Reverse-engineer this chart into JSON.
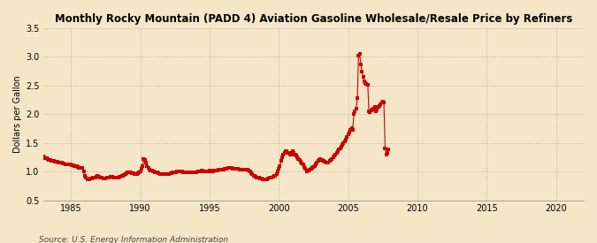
{
  "title": "Monthly Rocky Mountain (PADD 4) Aviation Gasoline Wholesale/Resale Price by Refiners",
  "ylabel": "Dollars per Gallon",
  "source": "Source: U.S. Energy Information Administration",
  "background_color": "#f5e6c8",
  "line_color": "#cc0000",
  "xlim": [
    1983.0,
    2022.0
  ],
  "ylim": [
    0.5,
    3.5
  ],
  "yticks": [
    0.5,
    1.0,
    1.5,
    2.0,
    2.5,
    3.0,
    3.5
  ],
  "xticks": [
    1985,
    1990,
    1995,
    2000,
    2005,
    2010,
    2015,
    2020
  ],
  "data": [
    [
      1983.0,
      1.27
    ],
    [
      1983.08,
      1.25
    ],
    [
      1983.17,
      1.24
    ],
    [
      1983.25,
      1.23
    ],
    [
      1983.33,
      1.22
    ],
    [
      1983.42,
      1.21
    ],
    [
      1983.5,
      1.2
    ],
    [
      1983.58,
      1.19
    ],
    [
      1983.67,
      1.19
    ],
    [
      1983.75,
      1.18
    ],
    [
      1983.83,
      1.17
    ],
    [
      1983.92,
      1.17
    ],
    [
      1984.0,
      1.17
    ],
    [
      1984.08,
      1.16
    ],
    [
      1984.17,
      1.16
    ],
    [
      1984.25,
      1.15
    ],
    [
      1984.33,
      1.15
    ],
    [
      1984.42,
      1.14
    ],
    [
      1984.5,
      1.14
    ],
    [
      1984.58,
      1.13
    ],
    [
      1984.67,
      1.13
    ],
    [
      1984.75,
      1.13
    ],
    [
      1984.83,
      1.12
    ],
    [
      1984.92,
      1.12
    ],
    [
      1985.0,
      1.12
    ],
    [
      1985.08,
      1.11
    ],
    [
      1985.17,
      1.11
    ],
    [
      1985.25,
      1.1
    ],
    [
      1985.33,
      1.1
    ],
    [
      1985.42,
      1.09
    ],
    [
      1985.5,
      1.08
    ],
    [
      1985.58,
      1.07
    ],
    [
      1985.67,
      1.07
    ],
    [
      1985.75,
      1.07
    ],
    [
      1985.83,
      1.06
    ],
    [
      1985.92,
      1.0
    ],
    [
      1986.0,
      0.93
    ],
    [
      1986.08,
      0.89
    ],
    [
      1986.17,
      0.87
    ],
    [
      1986.25,
      0.87
    ],
    [
      1986.33,
      0.87
    ],
    [
      1986.42,
      0.88
    ],
    [
      1986.5,
      0.88
    ],
    [
      1986.58,
      0.89
    ],
    [
      1986.67,
      0.9
    ],
    [
      1986.75,
      0.9
    ],
    [
      1986.83,
      0.91
    ],
    [
      1986.92,
      0.92
    ],
    [
      1987.0,
      0.91
    ],
    [
      1987.08,
      0.9
    ],
    [
      1987.17,
      0.89
    ],
    [
      1987.25,
      0.89
    ],
    [
      1987.33,
      0.88
    ],
    [
      1987.42,
      0.88
    ],
    [
      1987.5,
      0.88
    ],
    [
      1987.58,
      0.89
    ],
    [
      1987.67,
      0.9
    ],
    [
      1987.75,
      0.9
    ],
    [
      1987.83,
      0.91
    ],
    [
      1987.92,
      0.91
    ],
    [
      1988.0,
      0.91
    ],
    [
      1988.08,
      0.9
    ],
    [
      1988.17,
      0.9
    ],
    [
      1988.25,
      0.9
    ],
    [
      1988.33,
      0.9
    ],
    [
      1988.42,
      0.9
    ],
    [
      1988.5,
      0.91
    ],
    [
      1988.58,
      0.91
    ],
    [
      1988.67,
      0.92
    ],
    [
      1988.75,
      0.93
    ],
    [
      1988.83,
      0.94
    ],
    [
      1988.92,
      0.95
    ],
    [
      1989.0,
      0.97
    ],
    [
      1989.08,
      0.98
    ],
    [
      1989.17,
      0.99
    ],
    [
      1989.25,
      0.99
    ],
    [
      1989.33,
      0.98
    ],
    [
      1989.42,
      0.97
    ],
    [
      1989.5,
      0.97
    ],
    [
      1989.58,
      0.96
    ],
    [
      1989.67,
      0.96
    ],
    [
      1989.75,
      0.96
    ],
    [
      1989.83,
      0.97
    ],
    [
      1989.92,
      0.98
    ],
    [
      1990.0,
      1.0
    ],
    [
      1990.08,
      1.05
    ],
    [
      1990.17,
      1.1
    ],
    [
      1990.25,
      1.22
    ],
    [
      1990.33,
      1.2
    ],
    [
      1990.42,
      1.15
    ],
    [
      1990.5,
      1.1
    ],
    [
      1990.58,
      1.07
    ],
    [
      1990.67,
      1.04
    ],
    [
      1990.75,
      1.02
    ],
    [
      1990.83,
      1.01
    ],
    [
      1990.92,
      1.0
    ],
    [
      1991.0,
      1.0
    ],
    [
      1991.08,
      0.99
    ],
    [
      1991.17,
      0.98
    ],
    [
      1991.25,
      0.98
    ],
    [
      1991.33,
      0.97
    ],
    [
      1991.42,
      0.96
    ],
    [
      1991.5,
      0.96
    ],
    [
      1991.58,
      0.96
    ],
    [
      1991.67,
      0.96
    ],
    [
      1991.75,
      0.95
    ],
    [
      1991.83,
      0.95
    ],
    [
      1991.92,
      0.95
    ],
    [
      1992.0,
      0.96
    ],
    [
      1992.08,
      0.96
    ],
    [
      1992.17,
      0.97
    ],
    [
      1992.25,
      0.97
    ],
    [
      1992.33,
      0.98
    ],
    [
      1992.42,
      0.98
    ],
    [
      1992.5,
      0.99
    ],
    [
      1992.58,
      0.99
    ],
    [
      1992.67,
      1.0
    ],
    [
      1992.75,
      1.0
    ],
    [
      1992.83,
      1.0
    ],
    [
      1992.92,
      1.0
    ],
    [
      1993.0,
      1.0
    ],
    [
      1993.08,
      0.99
    ],
    [
      1993.17,
      0.99
    ],
    [
      1993.25,
      0.99
    ],
    [
      1993.33,
      0.98
    ],
    [
      1993.42,
      0.98
    ],
    [
      1993.5,
      0.98
    ],
    [
      1993.58,
      0.99
    ],
    [
      1993.67,
      0.99
    ],
    [
      1993.75,
      0.99
    ],
    [
      1993.83,
      0.99
    ],
    [
      1993.92,
      0.99
    ],
    [
      1994.0,
      0.99
    ],
    [
      1994.08,
      0.99
    ],
    [
      1994.17,
      1.0
    ],
    [
      1994.25,
      1.0
    ],
    [
      1994.33,
      1.0
    ],
    [
      1994.42,
      1.01
    ],
    [
      1994.5,
      1.01
    ],
    [
      1994.58,
      1.0
    ],
    [
      1994.67,
      1.0
    ],
    [
      1994.75,
      1.0
    ],
    [
      1994.83,
      1.0
    ],
    [
      1994.92,
      1.0
    ],
    [
      1995.0,
      1.01
    ],
    [
      1995.08,
      1.0
    ],
    [
      1995.17,
      1.01
    ],
    [
      1995.25,
      1.0
    ],
    [
      1995.33,
      1.01
    ],
    [
      1995.42,
      1.01
    ],
    [
      1995.5,
      1.02
    ],
    [
      1995.58,
      1.02
    ],
    [
      1995.67,
      1.03
    ],
    [
      1995.75,
      1.03
    ],
    [
      1995.83,
      1.03
    ],
    [
      1995.92,
      1.03
    ],
    [
      1996.0,
      1.04
    ],
    [
      1996.08,
      1.05
    ],
    [
      1996.17,
      1.05
    ],
    [
      1996.25,
      1.05
    ],
    [
      1996.33,
      1.06
    ],
    [
      1996.42,
      1.06
    ],
    [
      1996.5,
      1.06
    ],
    [
      1996.58,
      1.06
    ],
    [
      1996.67,
      1.05
    ],
    [
      1996.75,
      1.05
    ],
    [
      1996.83,
      1.05
    ],
    [
      1996.92,
      1.05
    ],
    [
      1997.0,
      1.05
    ],
    [
      1997.08,
      1.05
    ],
    [
      1997.17,
      1.04
    ],
    [
      1997.25,
      1.04
    ],
    [
      1997.33,
      1.04
    ],
    [
      1997.42,
      1.04
    ],
    [
      1997.5,
      1.04
    ],
    [
      1997.58,
      1.04
    ],
    [
      1997.67,
      1.04
    ],
    [
      1997.75,
      1.04
    ],
    [
      1997.83,
      1.02
    ],
    [
      1997.92,
      1.0
    ],
    [
      1998.0,
      0.97
    ],
    [
      1998.08,
      0.95
    ],
    [
      1998.17,
      0.93
    ],
    [
      1998.25,
      0.92
    ],
    [
      1998.33,
      0.91
    ],
    [
      1998.42,
      0.9
    ],
    [
      1998.5,
      0.9
    ],
    [
      1998.58,
      0.89
    ],
    [
      1998.67,
      0.88
    ],
    [
      1998.75,
      0.88
    ],
    [
      1998.83,
      0.87
    ],
    [
      1998.92,
      0.87
    ],
    [
      1999.0,
      0.87
    ],
    [
      1999.08,
      0.87
    ],
    [
      1999.17,
      0.87
    ],
    [
      1999.25,
      0.88
    ],
    [
      1999.33,
      0.89
    ],
    [
      1999.42,
      0.9
    ],
    [
      1999.5,
      0.9
    ],
    [
      1999.58,
      0.91
    ],
    [
      1999.67,
      0.92
    ],
    [
      1999.75,
      0.93
    ],
    [
      1999.83,
      0.96
    ],
    [
      1999.92,
      1.0
    ],
    [
      2000.0,
      1.05
    ],
    [
      2000.08,
      1.1
    ],
    [
      2000.17,
      1.18
    ],
    [
      2000.25,
      1.25
    ],
    [
      2000.33,
      1.3
    ],
    [
      2000.42,
      1.33
    ],
    [
      2000.5,
      1.35
    ],
    [
      2000.58,
      1.35
    ],
    [
      2000.67,
      1.33
    ],
    [
      2000.75,
      1.32
    ],
    [
      2000.83,
      1.3
    ],
    [
      2000.92,
      1.3
    ],
    [
      2001.0,
      1.35
    ],
    [
      2001.08,
      1.32
    ],
    [
      2001.17,
      1.3
    ],
    [
      2001.25,
      1.28
    ],
    [
      2001.33,
      1.25
    ],
    [
      2001.42,
      1.22
    ],
    [
      2001.5,
      1.2
    ],
    [
      2001.58,
      1.17
    ],
    [
      2001.67,
      1.14
    ],
    [
      2001.75,
      1.12
    ],
    [
      2001.83,
      1.08
    ],
    [
      2001.92,
      1.05
    ],
    [
      2002.0,
      1.0
    ],
    [
      2002.08,
      1.01
    ],
    [
      2002.17,
      1.02
    ],
    [
      2002.25,
      1.03
    ],
    [
      2002.33,
      1.05
    ],
    [
      2002.42,
      1.07
    ],
    [
      2002.5,
      1.08
    ],
    [
      2002.58,
      1.1
    ],
    [
      2002.67,
      1.12
    ],
    [
      2002.75,
      1.15
    ],
    [
      2002.83,
      1.18
    ],
    [
      2002.92,
      1.2
    ],
    [
      2003.0,
      1.22
    ],
    [
      2003.08,
      1.2
    ],
    [
      2003.17,
      1.19
    ],
    [
      2003.25,
      1.18
    ],
    [
      2003.33,
      1.17
    ],
    [
      2003.42,
      1.16
    ],
    [
      2003.5,
      1.15
    ],
    [
      2003.58,
      1.16
    ],
    [
      2003.67,
      1.18
    ],
    [
      2003.75,
      1.2
    ],
    [
      2003.83,
      1.22
    ],
    [
      2003.92,
      1.25
    ],
    [
      2004.0,
      1.28
    ],
    [
      2004.08,
      1.3
    ],
    [
      2004.17,
      1.33
    ],
    [
      2004.25,
      1.35
    ],
    [
      2004.33,
      1.38
    ],
    [
      2004.42,
      1.4
    ],
    [
      2004.5,
      1.43
    ],
    [
      2004.58,
      1.46
    ],
    [
      2004.67,
      1.5
    ],
    [
      2004.75,
      1.53
    ],
    [
      2004.83,
      1.56
    ],
    [
      2004.92,
      1.6
    ],
    [
      2005.0,
      1.65
    ],
    [
      2005.08,
      1.68
    ],
    [
      2005.17,
      1.72
    ],
    [
      2005.25,
      1.75
    ],
    [
      2005.33,
      1.73
    ],
    [
      2005.42,
      2.0
    ],
    [
      2005.5,
      2.05
    ],
    [
      2005.58,
      2.1
    ],
    [
      2005.67,
      2.28
    ],
    [
      2005.75,
      3.02
    ],
    [
      2005.83,
      3.05
    ],
    [
      2005.92,
      2.87
    ],
    [
      2006.0,
      2.75
    ],
    [
      2006.08,
      2.65
    ],
    [
      2006.17,
      2.57
    ],
    [
      2006.25,
      2.55
    ],
    [
      2006.33,
      2.53
    ],
    [
      2006.42,
      2.52
    ],
    [
      2006.5,
      2.05
    ],
    [
      2006.58,
      2.04
    ],
    [
      2006.67,
      2.06
    ],
    [
      2006.75,
      2.08
    ],
    [
      2006.83,
      2.1
    ],
    [
      2006.92,
      2.12
    ],
    [
      2007.0,
      2.05
    ],
    [
      2007.08,
      2.08
    ],
    [
      2007.17,
      2.12
    ],
    [
      2007.25,
      2.15
    ],
    [
      2007.33,
      2.18
    ],
    [
      2007.42,
      2.2
    ],
    [
      2007.5,
      2.22
    ],
    [
      2007.58,
      2.2
    ],
    [
      2007.67,
      1.4
    ],
    [
      2007.75,
      1.3
    ],
    [
      2007.83,
      1.32
    ],
    [
      2007.92,
      1.38
    ]
  ]
}
